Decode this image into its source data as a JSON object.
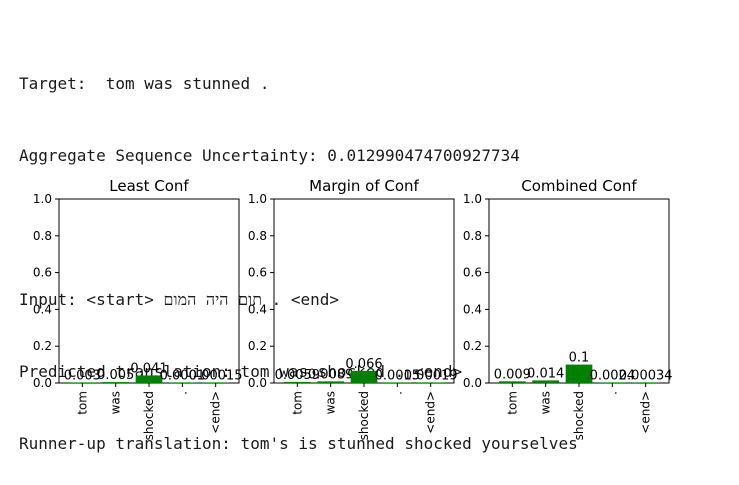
{
  "header": {
    "target_line": "Target:  tom was stunned .",
    "uncertainty_line": "Aggregate Sequence Uncertainty: 0.012990474700927734",
    "input_line": "Input: <start> תום היה המום . <end>",
    "predicted_line": "Predicted translation: tom was shocked . <end>",
    "runnerup_line": "Runner-up translation: tom's is stunned shocked yourselves"
  },
  "colors": {
    "bar": "#008000",
    "axis": "#000000"
  },
  "chart_data": [
    {
      "type": "bar",
      "title": "Least Conf",
      "categories": [
        "tom",
        "was",
        "shocked",
        ".",
        "<end>"
      ],
      "values": [
        0.003,
        0.005,
        0.041,
        0.0001,
        0.00015
      ],
      "data_labels": [
        "0.003",
        "0.005",
        "0.041",
        "0.0001",
        "0.00015"
      ],
      "ylim": [
        0,
        1.0
      ],
      "yticks": [
        "0.0",
        "0.2",
        "0.4",
        "0.6",
        "0.8",
        "1.0"
      ]
    },
    {
      "type": "bar",
      "title": "Margin of Conf",
      "categories": [
        "tom",
        "was",
        "shocked",
        ".",
        "<end>"
      ],
      "values": [
        0.0059,
        0.0089,
        0.066,
        0.0015,
        0.00019
      ],
      "data_labels": [
        "0.0059",
        "0.0089",
        "0.066",
        "0.0015",
        "0.00019"
      ],
      "ylim": [
        0,
        1.0
      ],
      "yticks": [
        "0.0",
        "0.2",
        "0.4",
        "0.6",
        "0.8",
        "1.0"
      ]
    },
    {
      "type": "bar",
      "title": "Combined Conf",
      "categories": [
        "tom",
        "was",
        "shocked",
        ".",
        "<end>"
      ],
      "values": [
        0.009,
        0.014,
        0.1,
        0.0024,
        0.00034
      ],
      "data_labels": [
        "0.009",
        "0.014",
        "0.1",
        "0.0024",
        "0.00034"
      ],
      "ylim": [
        0,
        1.0
      ],
      "yticks": [
        "0.0",
        "0.2",
        "0.4",
        "0.6",
        "0.8",
        "1.0"
      ]
    }
  ]
}
